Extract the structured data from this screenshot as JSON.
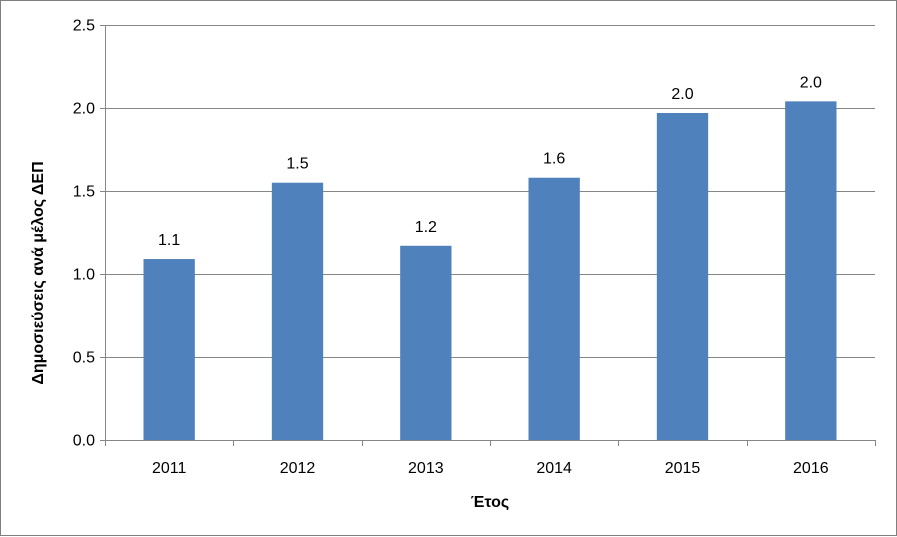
{
  "chart_data": {
    "type": "bar",
    "categories": [
      "2011",
      "2012",
      "2013",
      "2014",
      "2015",
      "2016"
    ],
    "values": [
      1.09,
      1.55,
      1.17,
      1.58,
      1.97,
      2.04
    ],
    "data_labels": [
      "1.1",
      "1.5",
      "1.2",
      "1.6",
      "2.0",
      "2.0"
    ],
    "title": "",
    "xlabel": "Έτος",
    "ylabel": "Δημοσιεύσεις ανά μέλος ΔΕΠ",
    "ylim": [
      0,
      2.5
    ],
    "yticks": [
      "0.0",
      "0.5",
      "1.0",
      "1.5",
      "2.0",
      "2.5"
    ],
    "ytick_values": [
      0,
      0.5,
      1.0,
      1.5,
      2.0,
      2.5
    ],
    "grid": true,
    "legend": "none",
    "bar_color": "#4f81bd",
    "grid_color": "#868686"
  }
}
